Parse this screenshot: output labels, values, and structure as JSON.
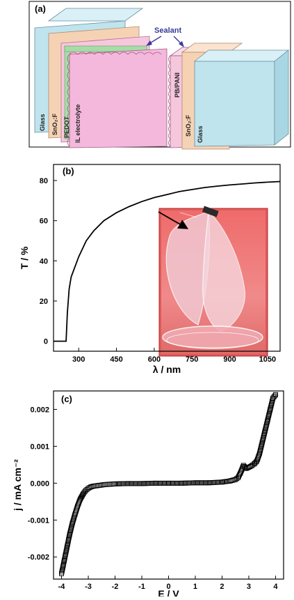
{
  "panel_a": {
    "label": "(a)",
    "sealant_label": "Sealant",
    "left_stack": [
      "Glass",
      "SnO₂:F",
      "PEDOT",
      "IL electrolyte"
    ],
    "right_stack": [
      "PB/PANI",
      "SnO₂:F",
      "Glass"
    ],
    "colors": {
      "glass": "#bfe4ee",
      "fto": "#f6d2b4",
      "pedot": "#f7c7dd",
      "electrolyte": "#f3b8db",
      "pb_pani": "#f5c6dc",
      "sealant": "#a7dca8",
      "arrow": "#3a3a9a"
    }
  },
  "panel_b": {
    "label": "(b)",
    "inset_photo": "flexible-film-photo"
  },
  "panel_c": {
    "label": "(c)"
  },
  "chart_data": [
    {
      "type": "line",
      "title": "",
      "xlabel": "λ / nm",
      "ylabel": "T / %",
      "xlim": [
        200,
        1100
      ],
      "ylim": [
        -5,
        88
      ],
      "xticks": [
        300,
        450,
        600,
        750,
        900,
        1050
      ],
      "yticks": [
        0,
        20,
        40,
        60,
        80
      ],
      "series": [
        {
          "x": [
            200,
            250,
            255,
            262,
            270,
            285,
            300,
            330,
            360,
            400,
            450,
            500,
            550,
            600,
            650,
            700,
            750,
            800,
            850,
            900,
            950,
            1000,
            1050,
            1100
          ],
          "y": [
            0,
            0,
            14,
            26,
            32,
            37,
            42,
            50,
            55,
            60,
            64,
            67,
            69.5,
            71.5,
            73,
            74.5,
            75.5,
            76.5,
            77.2,
            77.8,
            78.3,
            78.8,
            79.2,
            79.5
          ]
        }
      ]
    },
    {
      "type": "scatter",
      "title": "",
      "xlabel": "E / V",
      "ylabel": "j / mA cm⁻²",
      "xlim": [
        -4.3,
        4.3
      ],
      "ylim": [
        -0.0026,
        0.0025
      ],
      "xticks": [
        -4,
        -3,
        -2,
        -1,
        0,
        1,
        2,
        3,
        4
      ],
      "yticks": [
        -0.002,
        -0.001,
        0.0,
        0.001,
        0.002
      ],
      "ytick_labels": [
        "-0.002",
        "-0.001",
        "0.000",
        "0.001",
        "0.002"
      ],
      "series": [
        {
          "x": [
            -4.0,
            -3.9,
            -3.8,
            -3.7,
            -3.6,
            -3.5,
            -3.4,
            -3.3,
            -3.2,
            -3.1,
            -3.0,
            -2.9,
            -2.8,
            -2.6,
            -2.4,
            -2.2,
            -2.0,
            -1.5,
            -1.0,
            -0.5,
            0.0,
            0.5,
            1.0,
            1.5,
            2.0,
            2.3,
            2.5,
            2.6,
            2.7,
            2.8,
            2.9,
            3.0,
            3.1,
            3.2,
            3.3,
            3.4,
            3.5,
            3.6,
            3.7,
            3.8,
            3.9,
            4.0
          ],
          "y": [
            -0.00245,
            -0.0021,
            -0.00175,
            -0.0014,
            -0.0011,
            -0.00085,
            -0.00062,
            -0.00043,
            -0.0003,
            -0.0002,
            -0.00014,
            -0.0001,
            -8e-05,
            -6e-05,
            -4e-05,
            -3e-05,
            -2e-05,
            -1e-05,
            -1e-05,
            0.0,
            0.0,
            0.0,
            1e-05,
            1e-05,
            3e-05,
            6e-05,
            0.0001,
            0.00015,
            0.0003,
            0.00048,
            0.0004,
            0.00043,
            0.00047,
            0.00052,
            0.0006,
            0.0008,
            0.0011,
            0.0014,
            0.0017,
            0.002,
            0.0023,
            0.0024
          ]
        }
      ]
    }
  ]
}
